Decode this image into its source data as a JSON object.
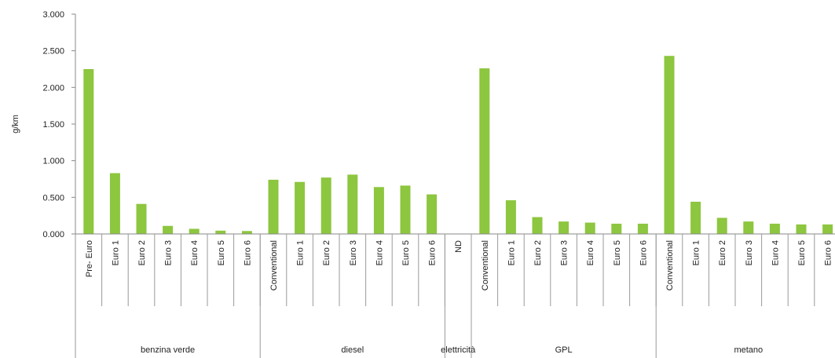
{
  "chart_data": {
    "type": "bar",
    "title": "",
    "ylabel": "g/km",
    "xlabel": "",
    "ylim": [
      0,
      3000
    ],
    "yticks": [
      "0.000",
      "0.500",
      "1.000",
      "1.500",
      "2.000",
      "2.500",
      "3.000"
    ],
    "ytick_values": [
      0,
      500,
      1000,
      1500,
      2000,
      2500,
      3000
    ],
    "grid": false,
    "bar_color": "#8dc63f",
    "groups": [
      {
        "name": "benzina verde",
        "categories": [
          "Pre- Euro",
          "Euro 1",
          "Euro 2",
          "Euro 3",
          "Euro 4",
          "Euro 5",
          "Euro 6"
        ],
        "values": [
          2250,
          830,
          410,
          110,
          70,
          45,
          40
        ]
      },
      {
        "name": "diesel",
        "categories": [
          "Conventional",
          "Euro 1",
          "Euro 2",
          "Euro 3",
          "Euro 4",
          "Euro 5",
          "Euro 6"
        ],
        "values": [
          740,
          710,
          770,
          810,
          640,
          660,
          540
        ]
      },
      {
        "name": "elettricità",
        "categories": [
          "ND"
        ],
        "values": [
          0
        ]
      },
      {
        "name": "GPL",
        "categories": [
          "Conventional",
          "Euro 1",
          "Euro 2",
          "Euro 3",
          "Euro 4",
          "Euro 5",
          "Euro 6"
        ],
        "values": [
          2260,
          460,
          230,
          170,
          155,
          140,
          140
        ]
      },
      {
        "name": "metano",
        "categories": [
          "Conventional",
          "Euro 1",
          "Euro 2",
          "Euro 3",
          "Euro 4",
          "Euro 5",
          "Euro 6"
        ],
        "values": [
          2430,
          440,
          220,
          170,
          140,
          130,
          130
        ]
      }
    ]
  }
}
